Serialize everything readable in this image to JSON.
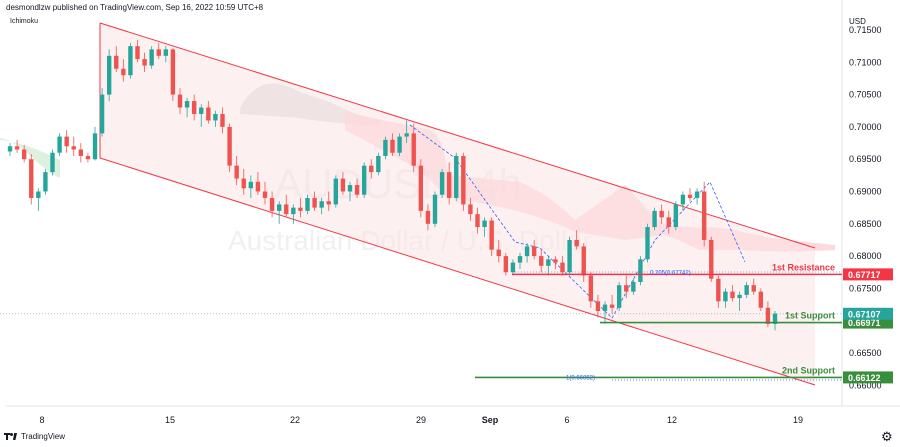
{
  "header": {
    "publisher": "desmondlzw published on TradingView.com, Sep 16, 2022 10:59 UTC+8"
  },
  "indicator": {
    "name": "Ichimoku"
  },
  "footer": {
    "brand": "TradingView"
  },
  "watermark": {
    "symbol": "AUDUSD",
    "interval": "4h",
    "description": "Australian Dollar / U.S. Dollar"
  },
  "colors": {
    "up": "#26a69a",
    "down": "#ef5350",
    "channel": "#f23645",
    "support": "#388e3c",
    "resistance": "#f23645",
    "fib": "#2962ff"
  },
  "chart_data": {
    "type": "candlestick",
    "currency": "USD",
    "ylim": [
      0.658,
      0.7165
    ],
    "y_ticks": [
      "0.71500",
      "0.71000",
      "0.70500",
      "0.70000",
      "0.69500",
      "0.69000",
      "0.68500",
      "0.68000",
      "0.67500",
      "0.67000",
      "0.66500",
      "0.66000"
    ],
    "x_ticks": [
      "8",
      "15",
      "22",
      "29",
      "Sep",
      "6",
      "12",
      "19"
    ],
    "levels": [
      {
        "name": "1st Resistance",
        "price": 0.67717,
        "label": "0.67717",
        "color": "#f23645"
      },
      {
        "name": "1st Support",
        "price": 0.66971,
        "label": "0.66971",
        "color": "#388e3c"
      },
      {
        "name": "2nd Support",
        "price": 0.66122,
        "label": "0.66122",
        "color": "#388e3c"
      }
    ],
    "last_price": {
      "price": 0.67107,
      "label": "0.67107",
      "color": "#26a69a"
    },
    "fib_labels": [
      {
        "text": "0.205(0.67742)",
        "price": 0.6775
      },
      {
        "text": "1(0.66052)",
        "price": 0.6612
      }
    ],
    "candles": [
      [
        0.6962,
        0.6975,
        0.6955,
        0.697
      ],
      [
        0.697,
        0.698,
        0.696,
        0.6965
      ],
      [
        0.6965,
        0.6972,
        0.6945,
        0.695
      ],
      [
        0.695,
        0.6958,
        0.688,
        0.689
      ],
      [
        0.689,
        0.6905,
        0.687,
        0.69
      ],
      [
        0.69,
        0.6935,
        0.6895,
        0.693
      ],
      [
        0.693,
        0.6965,
        0.6925,
        0.696
      ],
      [
        0.696,
        0.699,
        0.6955,
        0.6985
      ],
      [
        0.6985,
        0.6995,
        0.696,
        0.697
      ],
      [
        0.697,
        0.6985,
        0.6955,
        0.6965
      ],
      [
        0.6965,
        0.6975,
        0.6945,
        0.6955
      ],
      [
        0.6955,
        0.696,
        0.6945,
        0.695
      ],
      [
        0.695,
        0.7,
        0.6948,
        0.699
      ],
      [
        0.699,
        0.706,
        0.6985,
        0.705
      ],
      [
        0.705,
        0.712,
        0.704,
        0.711
      ],
      [
        0.711,
        0.7125,
        0.7085,
        0.709
      ],
      [
        0.709,
        0.7105,
        0.707,
        0.708
      ],
      [
        0.708,
        0.713,
        0.7075,
        0.7125
      ],
      [
        0.7125,
        0.7135,
        0.71,
        0.7105
      ],
      [
        0.7105,
        0.7115,
        0.7085,
        0.7095
      ],
      [
        0.7095,
        0.7125,
        0.709,
        0.712
      ],
      [
        0.712,
        0.713,
        0.7105,
        0.711
      ],
      [
        0.711,
        0.7125,
        0.71,
        0.712
      ],
      [
        0.712,
        0.7122,
        0.704,
        0.705
      ],
      [
        0.705,
        0.706,
        0.702,
        0.703
      ],
      [
        0.703,
        0.7045,
        0.7015,
        0.704
      ],
      [
        0.704,
        0.705,
        0.701,
        0.702
      ],
      [
        0.702,
        0.7035,
        0.7,
        0.703
      ],
      [
        0.703,
        0.704,
        0.7005,
        0.701
      ],
      [
        0.701,
        0.7025,
        0.7,
        0.702
      ],
      [
        0.702,
        0.703,
        0.699,
        0.7
      ],
      [
        0.7,
        0.7005,
        0.693,
        0.694
      ],
      [
        0.694,
        0.6955,
        0.691,
        0.692
      ],
      [
        0.692,
        0.6935,
        0.6895,
        0.6905
      ],
      [
        0.6905,
        0.6925,
        0.689,
        0.6915
      ],
      [
        0.6915,
        0.693,
        0.6895,
        0.69
      ],
      [
        0.69,
        0.6915,
        0.688,
        0.689
      ],
      [
        0.689,
        0.69,
        0.686,
        0.687
      ],
      [
        0.687,
        0.6885,
        0.685,
        0.688
      ],
      [
        0.688,
        0.6895,
        0.686,
        0.6865
      ],
      [
        0.6865,
        0.688,
        0.685,
        0.6875
      ],
      [
        0.6875,
        0.689,
        0.686,
        0.687
      ],
      [
        0.687,
        0.6895,
        0.6865,
        0.689
      ],
      [
        0.689,
        0.69,
        0.687,
        0.6875
      ],
      [
        0.6875,
        0.689,
        0.6865,
        0.6885
      ],
      [
        0.6885,
        0.69,
        0.687,
        0.688
      ],
      [
        0.688,
        0.6925,
        0.6875,
        0.692
      ],
      [
        0.692,
        0.693,
        0.6895,
        0.69
      ],
      [
        0.69,
        0.6915,
        0.6885,
        0.691
      ],
      [
        0.691,
        0.692,
        0.689,
        0.6895
      ],
      [
        0.6895,
        0.6945,
        0.689,
        0.694
      ],
      [
        0.694,
        0.695,
        0.692,
        0.693
      ],
      [
        0.693,
        0.696,
        0.6925,
        0.6955
      ],
      [
        0.6955,
        0.6985,
        0.695,
        0.698
      ],
      [
        0.698,
        0.699,
        0.6955,
        0.696
      ],
      [
        0.696,
        0.699,
        0.6955,
        0.6985
      ],
      [
        0.6985,
        0.701,
        0.6975,
        0.699
      ],
      [
        0.699,
        0.7005,
        0.693,
        0.694
      ],
      [
        0.694,
        0.695,
        0.686,
        0.687
      ],
      [
        0.687,
        0.688,
        0.684,
        0.685
      ],
      [
        0.685,
        0.69,
        0.6845,
        0.6895
      ],
      [
        0.6895,
        0.6935,
        0.689,
        0.693
      ],
      [
        0.693,
        0.6945,
        0.688,
        0.689
      ],
      [
        0.689,
        0.696,
        0.6885,
        0.6955
      ],
      [
        0.6955,
        0.696,
        0.687,
        0.688
      ],
      [
        0.688,
        0.689,
        0.6855,
        0.6865
      ],
      [
        0.6865,
        0.6875,
        0.6835,
        0.6845
      ],
      [
        0.6845,
        0.686,
        0.683,
        0.6855
      ],
      [
        0.6855,
        0.686,
        0.68,
        0.681
      ],
      [
        0.681,
        0.6825,
        0.679,
        0.68
      ],
      [
        0.68,
        0.6805,
        0.677,
        0.6775
      ],
      [
        0.6775,
        0.6795,
        0.677,
        0.679
      ],
      [
        0.679,
        0.6805,
        0.678,
        0.68
      ],
      [
        0.68,
        0.682,
        0.679,
        0.6815
      ],
      [
        0.6815,
        0.6825,
        0.6795,
        0.68
      ],
      [
        0.68,
        0.681,
        0.6775,
        0.6785
      ],
      [
        0.6785,
        0.68,
        0.677,
        0.6795
      ],
      [
        0.6795,
        0.68,
        0.678,
        0.679
      ],
      [
        0.679,
        0.68,
        0.677,
        0.6775
      ],
      [
        0.6775,
        0.683,
        0.677,
        0.6825
      ],
      [
        0.6825,
        0.684,
        0.681,
        0.6815
      ],
      [
        0.6815,
        0.682,
        0.676,
        0.677
      ],
      [
        0.677,
        0.6775,
        0.672,
        0.673
      ],
      [
        0.673,
        0.674,
        0.6705,
        0.6715
      ],
      [
        0.6715,
        0.673,
        0.6695,
        0.6725
      ],
      [
        0.6725,
        0.674,
        0.671,
        0.672
      ],
      [
        0.672,
        0.676,
        0.6715,
        0.6755
      ],
      [
        0.6755,
        0.677,
        0.6735,
        0.6745
      ],
      [
        0.6745,
        0.6765,
        0.674,
        0.676
      ],
      [
        0.676,
        0.68,
        0.6755,
        0.6795
      ],
      [
        0.6795,
        0.685,
        0.679,
        0.6845
      ],
      [
        0.6845,
        0.6875,
        0.684,
        0.687
      ],
      [
        0.687,
        0.688,
        0.685,
        0.686
      ],
      [
        0.686,
        0.687,
        0.6835,
        0.6845
      ],
      [
        0.6845,
        0.6885,
        0.684,
        0.688
      ],
      [
        0.688,
        0.69,
        0.687,
        0.6895
      ],
      [
        0.6895,
        0.6905,
        0.6885,
        0.689
      ],
      [
        0.689,
        0.6905,
        0.688,
        0.69
      ],
      [
        0.69,
        0.6915,
        0.6815,
        0.6825
      ],
      [
        0.6825,
        0.683,
        0.676,
        0.6765
      ],
      [
        0.6765,
        0.677,
        0.672,
        0.673
      ],
      [
        0.673,
        0.675,
        0.672,
        0.6745
      ],
      [
        0.6745,
        0.6755,
        0.673,
        0.6735
      ],
      [
        0.6735,
        0.6745,
        0.6715,
        0.674
      ],
      [
        0.674,
        0.676,
        0.6735,
        0.6755
      ],
      [
        0.6755,
        0.6765,
        0.674,
        0.6745
      ],
      [
        0.6745,
        0.675,
        0.6715,
        0.672
      ],
      [
        0.672,
        0.673,
        0.669,
        0.6695
      ],
      [
        0.6695,
        0.6715,
        0.6685,
        0.6711
      ]
    ]
  }
}
